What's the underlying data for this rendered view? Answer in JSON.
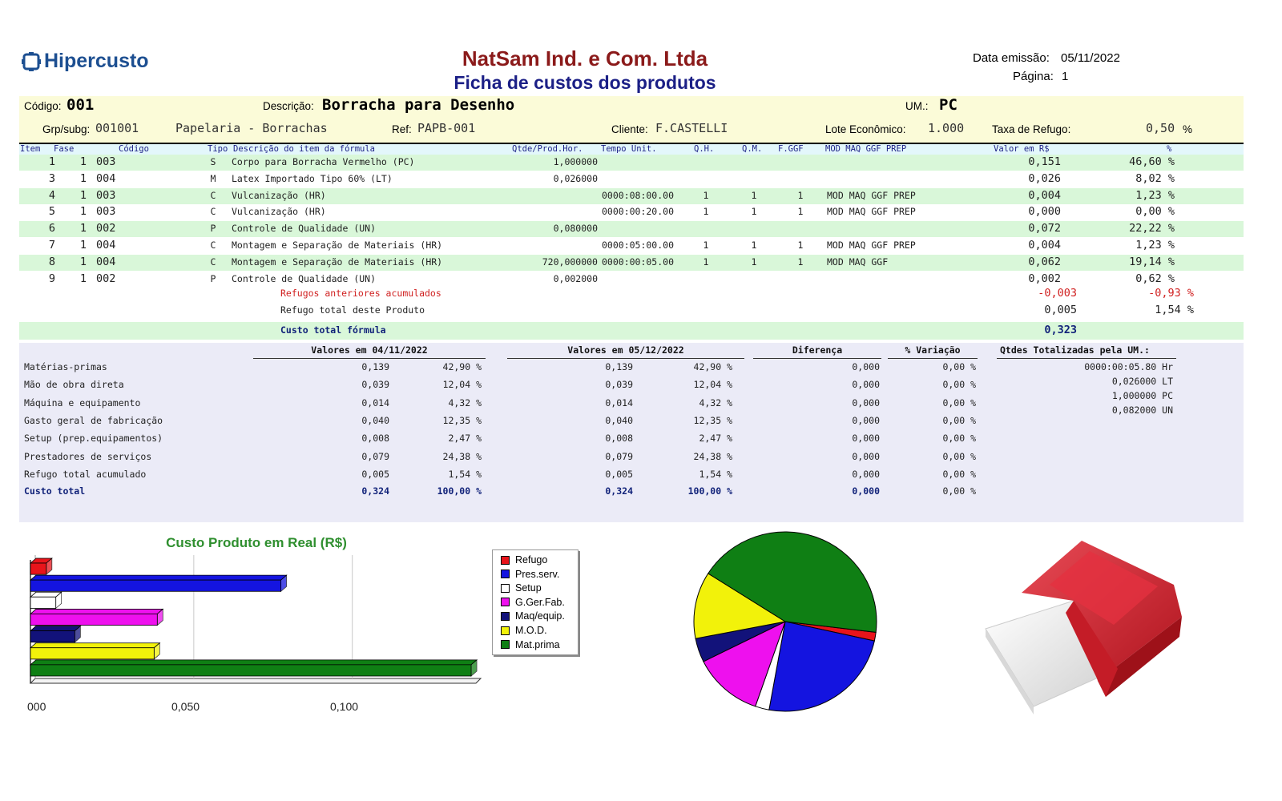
{
  "header": {
    "logo_text": "Hipercusto",
    "company": "NatSam Ind. e Com. Ltda",
    "subtitle": "Ficha de custos dos produtos",
    "emission_label": "Data emissão:",
    "emission_value": "05/11/2022",
    "page_label": "Página:",
    "page_value": "1"
  },
  "product": {
    "code_label": "Código:",
    "code_value": "001",
    "desc_label": "Descrição:",
    "desc_value": "Borracha para Desenho",
    "um_label": "UM.:",
    "um_value": "PC",
    "grp_label": "Grp/subg:",
    "grp_value": "001001",
    "grp_name": "Papelaria - Borrachas",
    "ref_label": "Ref:",
    "ref_value": "PAPB-001",
    "client_label": "Cliente:",
    "client_value": "F.CASTELLI",
    "lote_label": "Lote Econômico:",
    "lote_value": "1.000",
    "taxa_label": "Taxa de Refugo:",
    "taxa_value": "0,50",
    "taxa_unit": "%"
  },
  "items_header": {
    "item": "Item",
    "fase": "Fase",
    "codigo": "Código",
    "tipo": "Tipo",
    "descricao": "Descrição do item da fórmula",
    "qtde": "Qtde/Prod.Hor.",
    "tempo": "Tempo Unit.",
    "qh": "Q.H.",
    "qm": "Q.M.",
    "fggf": "F.GGF",
    "flags": "MOD MAQ GGF PREP",
    "valor": "Valor em R$",
    "pct": "%"
  },
  "items": [
    {
      "item": "1",
      "fase": "1",
      "cod": "003",
      "tipo": "S",
      "desc": "Corpo para Borracha Vermelho (PC)",
      "qtde": "1,000000",
      "tempo": "",
      "qh": "",
      "qm": "",
      "fggf": "",
      "flags": "",
      "valor": "0,151",
      "pct": "46,60 %"
    },
    {
      "item": "3",
      "fase": "1",
      "cod": "004",
      "tipo": "M",
      "desc": "Latex Importado Tipo 60% (LT)",
      "qtde": "0,026000",
      "tempo": "",
      "qh": "",
      "qm": "",
      "fggf": "",
      "flags": "",
      "valor": "0,026",
      "pct": "8,02 %"
    },
    {
      "item": "4",
      "fase": "1",
      "cod": "003",
      "tipo": "C",
      "desc": "Vulcanização (HR)",
      "qtde": "",
      "tempo": "0000:08:00.00",
      "qh": "1",
      "qm": "1",
      "fggf": "1",
      "flags": "MOD MAQ GGF PREP",
      "valor": "0,004",
      "pct": "1,23 %"
    },
    {
      "item": "5",
      "fase": "1",
      "cod": "003",
      "tipo": "C",
      "desc": "Vulcanização (HR)",
      "qtde": "",
      "tempo": "0000:00:20.00",
      "qh": "1",
      "qm": "1",
      "fggf": "1",
      "flags": "MOD MAQ GGF PREP",
      "valor": "0,000",
      "pct": "0,00 %"
    },
    {
      "item": "6",
      "fase": "1",
      "cod": "002",
      "tipo": "P",
      "desc": "Controle de Qualidade (UN)",
      "qtde": "0,080000",
      "tempo": "",
      "qh": "",
      "qm": "",
      "fggf": "",
      "flags": "",
      "valor": "0,072",
      "pct": "22,22 %"
    },
    {
      "item": "7",
      "fase": "1",
      "cod": "004",
      "tipo": "C",
      "desc": "Montagem e Separação de Materiais (HR)",
      "qtde": "",
      "tempo": "0000:05:00.00",
      "qh": "1",
      "qm": "1",
      "fggf": "1",
      "flags": "MOD MAQ GGF PREP",
      "valor": "0,004",
      "pct": "1,23 %"
    },
    {
      "item": "8",
      "fase": "1",
      "cod": "004",
      "tipo": "C",
      "desc": "Montagem e Separação de Materiais (HR)",
      "qtde": "720,000000",
      "tempo": "0000:00:05.00",
      "qh": "1",
      "qm": "1",
      "fggf": "1",
      "flags": "MOD MAQ GGF",
      "valor": "0,062",
      "pct": "19,14 %"
    },
    {
      "item": "9",
      "fase": "1",
      "cod": "002",
      "tipo": "P",
      "desc": "Controle de Qualidade (UN)",
      "qtde": "0,002000",
      "tempo": "",
      "qh": "",
      "qm": "",
      "fggf": "",
      "flags": "",
      "valor": "0,002",
      "pct": "0,62 %"
    }
  ],
  "extra_rows": [
    {
      "label": "Refugos anteriores acumulados",
      "valor": "-0,003",
      "pct": "-0,93 %"
    },
    {
      "label": "Refugo total deste Produto",
      "valor": "0,005",
      "pct": "1,54 %"
    }
  ],
  "total_row": {
    "label": "Custo total fórmula",
    "valor": "0,323"
  },
  "summary": {
    "h1": "Valores em 04/11/2022",
    "h2": "Valores em 05/12/2022",
    "h3": "Diferença",
    "h4": "% Variação",
    "h5": "Qtdes Totalizadas pela UM.:",
    "rows": [
      {
        "label": "Matérias-primas",
        "v1": "0,139",
        "p1": "42,90 %",
        "v2": "0,139",
        "p2": "42,90 %",
        "d": "0,000",
        "var": "0,00 %"
      },
      {
        "label": "Mão de obra direta",
        "v1": "0,039",
        "p1": "12,04 %",
        "v2": "0,039",
        "p2": "12,04 %",
        "d": "0,000",
        "var": "0,00 %"
      },
      {
        "label": "Máquina e equipamento",
        "v1": "0,014",
        "p1": "4,32 %",
        "v2": "0,014",
        "p2": "4,32 %",
        "d": "0,000",
        "var": "0,00 %"
      },
      {
        "label": "Gasto geral de fabricação",
        "v1": "0,040",
        "p1": "12,35 %",
        "v2": "0,040",
        "p2": "12,35 %",
        "d": "0,000",
        "var": "0,00 %"
      },
      {
        "label": "Setup (prep.equipamentos)",
        "v1": "0,008",
        "p1": "2,47 %",
        "v2": "0,008",
        "p2": "2,47 %",
        "d": "0,000",
        "var": "0,00 %"
      },
      {
        "label": "Prestadores de serviços",
        "v1": "0,079",
        "p1": "24,38 %",
        "v2": "0,079",
        "p2": "24,38 %",
        "d": "0,000",
        "var": "0,00 %"
      },
      {
        "label": "Refugo total acumulado",
        "v1": "0,005",
        "p1": "1,54 %",
        "v2": "0,005",
        "p2": "1,54 %",
        "d": "0,000",
        "var": "0,00 %"
      }
    ],
    "total": {
      "label": "Custo total",
      "v1": "0,324",
      "p1": "100,00 %",
      "v2": "0,324",
      "p2": "100,00 %",
      "d": "0,000",
      "var": "0,00 %"
    },
    "qtdes": [
      "0000:00:05.80 Hr",
      "0,026000 LT",
      "1,000000 PC",
      "0,082000 UN"
    ]
  },
  "chart_data": [
    {
      "type": "bar",
      "orientation": "horizontal",
      "title": "Custo Produto em Real (R$)",
      "categories": [
        "Refugo",
        "Pres.serv.",
        "Setup",
        "G.Ger.Fab.",
        "Maq/equip.",
        "M.O.D.",
        "Mat.prima"
      ],
      "values": [
        0.005,
        0.079,
        0.008,
        0.04,
        0.014,
        0.039,
        0.139
      ],
      "colors": [
        "#e8141b",
        "#1414e0",
        "#ffffff",
        "#ee10ee",
        "#12127a",
        "#f2f20a",
        "#0f7f14"
      ],
      "tick_labels": [
        "000",
        "0,050",
        "0,100"
      ],
      "xlim": [
        0,
        0.14
      ],
      "grid": true,
      "legend": "right"
    },
    {
      "type": "pie",
      "values": [
        0.005,
        0.079,
        0.008,
        0.04,
        0.014,
        0.039,
        0.139
      ],
      "colors": [
        "#e8141b",
        "#1414e0",
        "#ffffff",
        "#ee10ee",
        "#12127a",
        "#f2f20a",
        "#0f7f14"
      ]
    }
  ]
}
